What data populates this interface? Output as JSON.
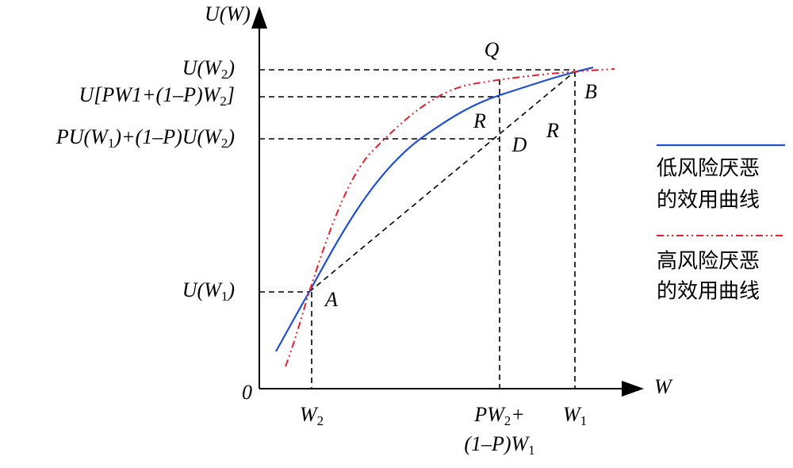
{
  "axes": {
    "y_title": [
      "U(W)"
    ],
    "x_title": [
      "W"
    ],
    "origin": [
      "0"
    ]
  },
  "y_labels": [
    [
      "U(W",
      "2",
      ")"
    ],
    [
      "U[PW1+(1–P)W",
      "2",
      "]"
    ],
    [
      "PU(W",
      "1",
      ")+(1–P)U(W",
      "2",
      ")"
    ],
    [
      "U(W",
      "1",
      ")"
    ]
  ],
  "x_labels": [
    [
      "W",
      "2"
    ],
    [
      "PW",
      "2",
      "+"
    ],
    [
      "(1–P)W",
      "1"
    ],
    [
      "W",
      "1"
    ]
  ],
  "points": [
    [
      "Q"
    ],
    [
      "B"
    ],
    [
      "R"
    ],
    [
      "D"
    ],
    [
      "R"
    ],
    [
      "A"
    ]
  ],
  "legend": [
    {
      "lines": [
        "低风险厌恶",
        "的效用曲线"
      ]
    },
    {
      "lines": [
        "高风险厌恶",
        "的效用曲线"
      ]
    }
  ]
}
